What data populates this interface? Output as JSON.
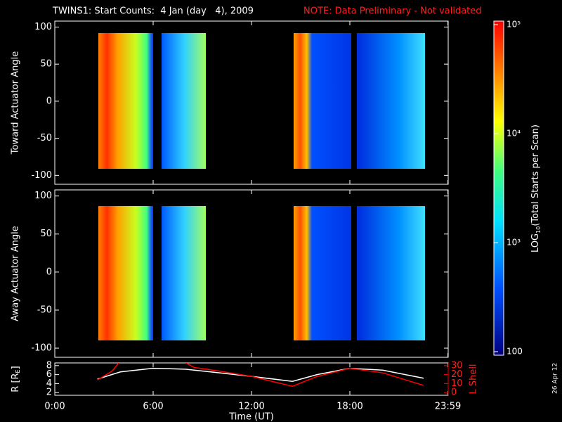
{
  "title": "TWINS1: Start Counts:  4 Jan (day   4), 2009",
  "note": "NOTE: Data Preliminary - Not validated",
  "date_stamp": "26 Apr 12",
  "chart_data": [
    {
      "type": "heatmap",
      "ylabel": "Toward Actuator Angle",
      "xlim": [
        0,
        24
      ],
      "ylim": [
        -112,
        108
      ],
      "yticks": [
        -100,
        -50,
        0,
        50,
        100
      ]
    },
    {
      "type": "heatmap",
      "ylabel": "Away Actuator Angle",
      "xlim": [
        0,
        24
      ],
      "ylim": [
        -112,
        108
      ],
      "yticks": [
        -100,
        -50,
        0,
        50,
        100
      ]
    },
    {
      "type": "line",
      "ylabel_parts": [
        "R [R",
        "E",
        "]"
      ],
      "y2label": "L Shell",
      "xlabel": "Time (UT)",
      "xlim": [
        0,
        24
      ],
      "xticks": [
        {
          "value": 0,
          "label": "0:00"
        },
        {
          "value": 6,
          "label": "6:00"
        },
        {
          "value": 12,
          "label": "12:00"
        },
        {
          "value": 18,
          "label": "18:00"
        },
        {
          "value": 23.98,
          "label": "23:59"
        }
      ],
      "ylim": [
        1.4,
        8.6
      ],
      "yticks": [
        2,
        4,
        6,
        8
      ],
      "y2lim": [
        -3,
        33
      ],
      "y2ticks": [
        0,
        10,
        20,
        30
      ],
      "series": [
        {
          "color": "#ffffff",
          "x": [
            2.6,
            4,
            6,
            8,
            10,
            12,
            14.5,
            16,
            18,
            20,
            22.5
          ],
          "values": [
            5.0,
            6.6,
            7.4,
            7.2,
            6.4,
            5.6,
            4.5,
            6.0,
            7.4,
            7.0,
            5.2
          ]
        },
        {
          "color": "#ff0000",
          "axis": "y2",
          "x": [
            2.6,
            3.5,
            3.9,
            6,
            8.0,
            8.5,
            10,
            12,
            14.5,
            16,
            18,
            20,
            22.5
          ],
          "values": [
            14,
            24,
            33,
            null,
            33,
            28,
            24,
            18,
            7,
            18,
            27,
            22,
            8
          ]
        }
      ]
    }
  ],
  "colorbar": {
    "label_parts": [
      "LOG",
      "10",
      "(Total Starts per Scan)"
    ],
    "log": true,
    "zlim": [
      100,
      100000
    ],
    "ticks": [
      {
        "value": 100000,
        "label": "10⁵"
      },
      {
        "value": 10000,
        "label": "10⁴"
      },
      {
        "value": 1000,
        "label": "10³"
      },
      100
    ]
  }
}
